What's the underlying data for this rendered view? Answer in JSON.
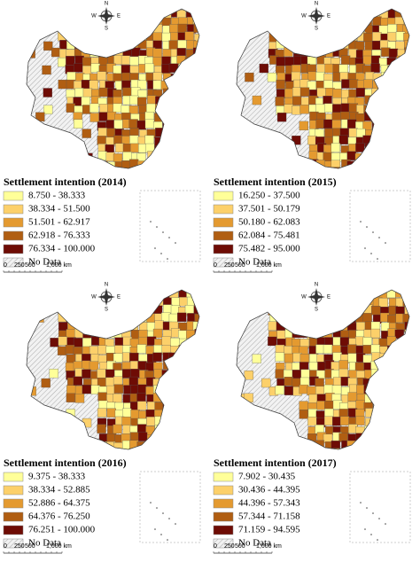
{
  "panels": [
    {
      "legend_title": "Settlement intention (2014)",
      "legend_items": [
        "8.750 - 38.333",
        "38.334 - 51.500",
        "51.501 - 62.917",
        "62.918 - 76.333",
        "76.334 - 100.000"
      ]
    },
    {
      "legend_title": "Settlement intention (2015)",
      "legend_items": [
        "16.250 - 37.500",
        "37.501 - 50.179",
        "50.180 - 62.083",
        "62.084 - 75.481",
        "75.482 - 95.000"
      ]
    },
    {
      "legend_title": "Settlement intention (2016)",
      "legend_items": [
        "9.375 - 38.333",
        "38.334 - 52.885",
        "52.886 - 64.375",
        "64.376 - 76.250",
        "76.251 - 100.000"
      ]
    },
    {
      "legend_title": "Settlement intention (2017)",
      "legend_items": [
        "7.902 - 30.435",
        "30.436 - 44.395",
        "44.396 - 57.343",
        "57.344 - 71.158",
        "71.159 - 94.595"
      ]
    }
  ],
  "legend_colors": [
    "#ffff99",
    "#fcd06a",
    "#e49a30",
    "#b05e12",
    "#6e0c05"
  ],
  "no_data": "No Data",
  "scale_bar": [
    "0",
    "250",
    "500",
    "1,000 km"
  ],
  "compass": {
    "n": "N",
    "e": "E",
    "s": "S",
    "w": "W"
  }
}
